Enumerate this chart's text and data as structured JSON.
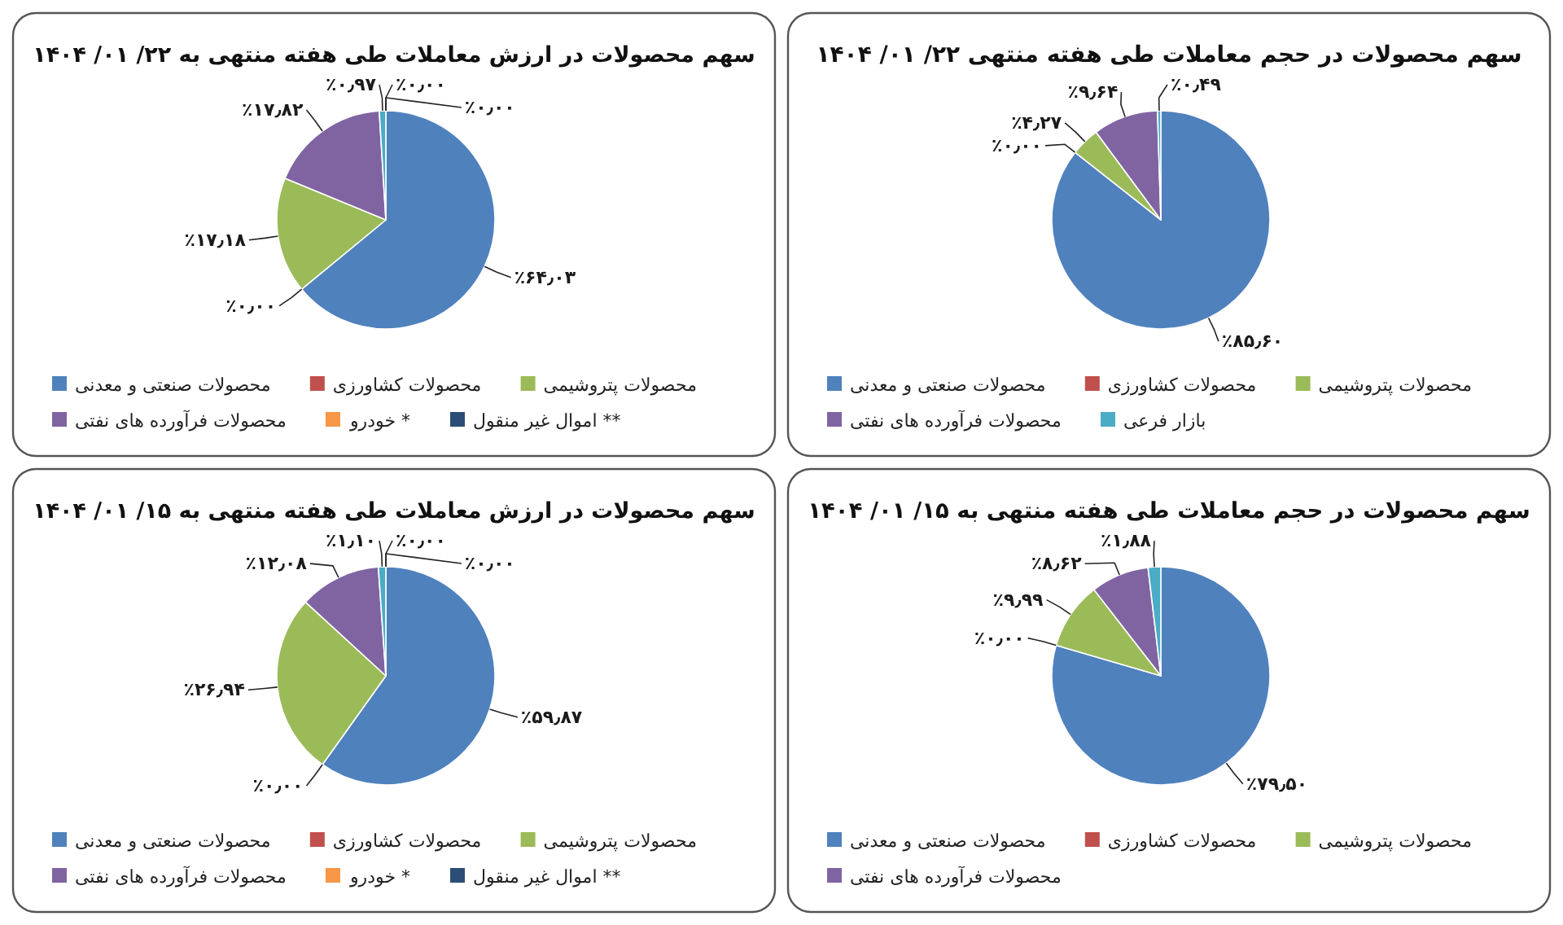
{
  "chart_data": [
    {
      "type": "pie",
      "title": "سهم محصولات در ارزش معاملات طی هفته منتهی به ۲۲/ ۰۱/ ۱۴۰۴",
      "categories": [
        "محصولات صنعتی و معدنی",
        "محصولات کشاورزی",
        "محصولات پتروشیمی",
        "محصولات فرآورده های نفتی",
        null,
        "* خودرو",
        "** اموال غیر منقول"
      ],
      "values": [
        64.03,
        0,
        17.18,
        17.82,
        0.97,
        0,
        0
      ],
      "colors": [
        "#4f81bd",
        "#c0504d",
        "#9bbb59",
        "#8064a2",
        "#4bacc6",
        "#f79646",
        "#2c4d75"
      ],
      "value_labels": [
        "٪۶۴٫۰۳",
        "٪۰٫۰۰",
        "٪۱۷٫۱۸",
        "٪۱۷٫۸۲",
        "٪۰٫۹۷",
        "٪۰٫۰۰",
        "٪۰٫۰۰"
      ],
      "legend": "bottom"
    },
    {
      "type": "pie",
      "title": "سهم محصولات در حجم معاملات طی هفته منتهی ۲۲/ ۰۱/ ۱۴۰۴",
      "categories": [
        "محصولات صنعتی و معدنی",
        "محصولات کشاورزی",
        "محصولات پتروشیمی",
        "محصولات فرآورده های نفتی",
        "بازار فرعی"
      ],
      "values": [
        85.6,
        0,
        4.27,
        9.64,
        0.49
      ],
      "colors": [
        "#4f81bd",
        "#c0504d",
        "#9bbb59",
        "#8064a2",
        "#4bacc6"
      ],
      "value_labels": [
        "٪۸۵٫۶۰",
        "٪۰٫۰۰",
        "٪۴٫۲۷",
        "٪۹٫۶۴",
        "٪۰٫۴۹"
      ],
      "legend": "bottom"
    },
    {
      "type": "pie",
      "title": "سهم محصولات در ارزش معاملات طی هفته منتهی به ۱۵/ ۰۱/ ۱۴۰۴",
      "categories": [
        "محصولات صنعتی و معدنی",
        "محصولات کشاورزی",
        "محصولات پتروشیمی",
        "محصولات فرآورده های نفتی",
        null,
        "* خودرو",
        "** اموال غیر منقول"
      ],
      "values": [
        59.87,
        0,
        26.94,
        12.08,
        1.1,
        0,
        0
      ],
      "colors": [
        "#4f81bd",
        "#c0504d",
        "#9bbb59",
        "#8064a2",
        "#4bacc6",
        "#f79646",
        "#2c4d75"
      ],
      "value_labels": [
        "٪۵۹٫۸۷",
        "٪۰٫۰۰",
        "٪۲۶٫۹۴",
        "٪۱۲٫۰۸",
        "٪۱٫۱۰",
        "٪۰٫۰۰",
        "٪۰٫۰۰"
      ],
      "legend": "bottom"
    },
    {
      "type": "pie",
      "title": "سهم محصولات در حجم معاملات طی هفته منتهی به ۱۵/ ۰۱/ ۱۴۰۴",
      "categories": [
        "محصولات صنعتی و معدنی",
        "محصولات کشاورزی",
        "محصولات پتروشیمی",
        "محصولات فرآورده های نفتی",
        null
      ],
      "values": [
        79.5,
        0,
        9.99,
        8.62,
        1.88
      ],
      "colors": [
        "#4f81bd",
        "#c0504d",
        "#9bbb59",
        "#8064a2",
        "#4bacc6"
      ],
      "value_labels": [
        "٪۷۹٫۵۰",
        "٪۰٫۰۰",
        "٪۹٫۹۹",
        "٪۸٫۶۲",
        "٪۱٫۸۸"
      ],
      "legend": "bottom"
    }
  ]
}
